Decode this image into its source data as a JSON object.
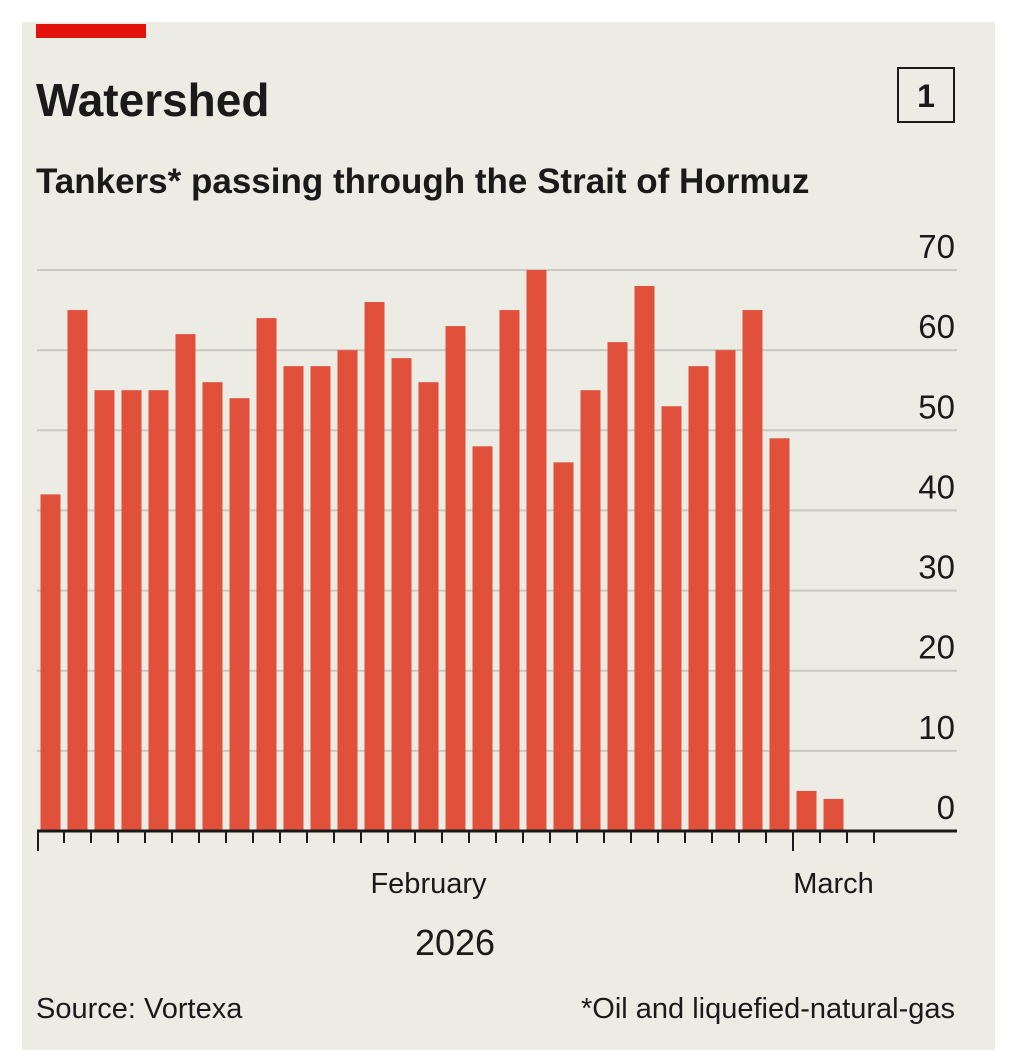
{
  "chart_data": {
    "type": "bar",
    "title": "Watershed",
    "badge": "1",
    "subtitle": "Tankers* passing through the Strait of Hormuz",
    "categories": [
      null,
      null,
      null,
      null,
      null,
      null,
      null,
      null,
      null,
      null,
      null,
      null,
      null,
      null,
      "February",
      null,
      null,
      null,
      null,
      null,
      null,
      null,
      null,
      null,
      null,
      null,
      null,
      null,
      null,
      "March",
      null
    ],
    "x_axis_label": "2026",
    "values": [
      42,
      65,
      55,
      55,
      55,
      62,
      56,
      54,
      64,
      58,
      58,
      60,
      66,
      59,
      56,
      63,
      48,
      65,
      70,
      46,
      55,
      61,
      68,
      53,
      58,
      60,
      65,
      49,
      5,
      4,
      null
    ],
    "color": "#e0503a",
    "ylim": [
      0,
      70
    ],
    "yticks": [
      0,
      10,
      20,
      30,
      40,
      50,
      60,
      70
    ],
    "grid": true,
    "source": "Source: Vortexa",
    "footnote": "*Oil and liquefied-natural-gas"
  }
}
